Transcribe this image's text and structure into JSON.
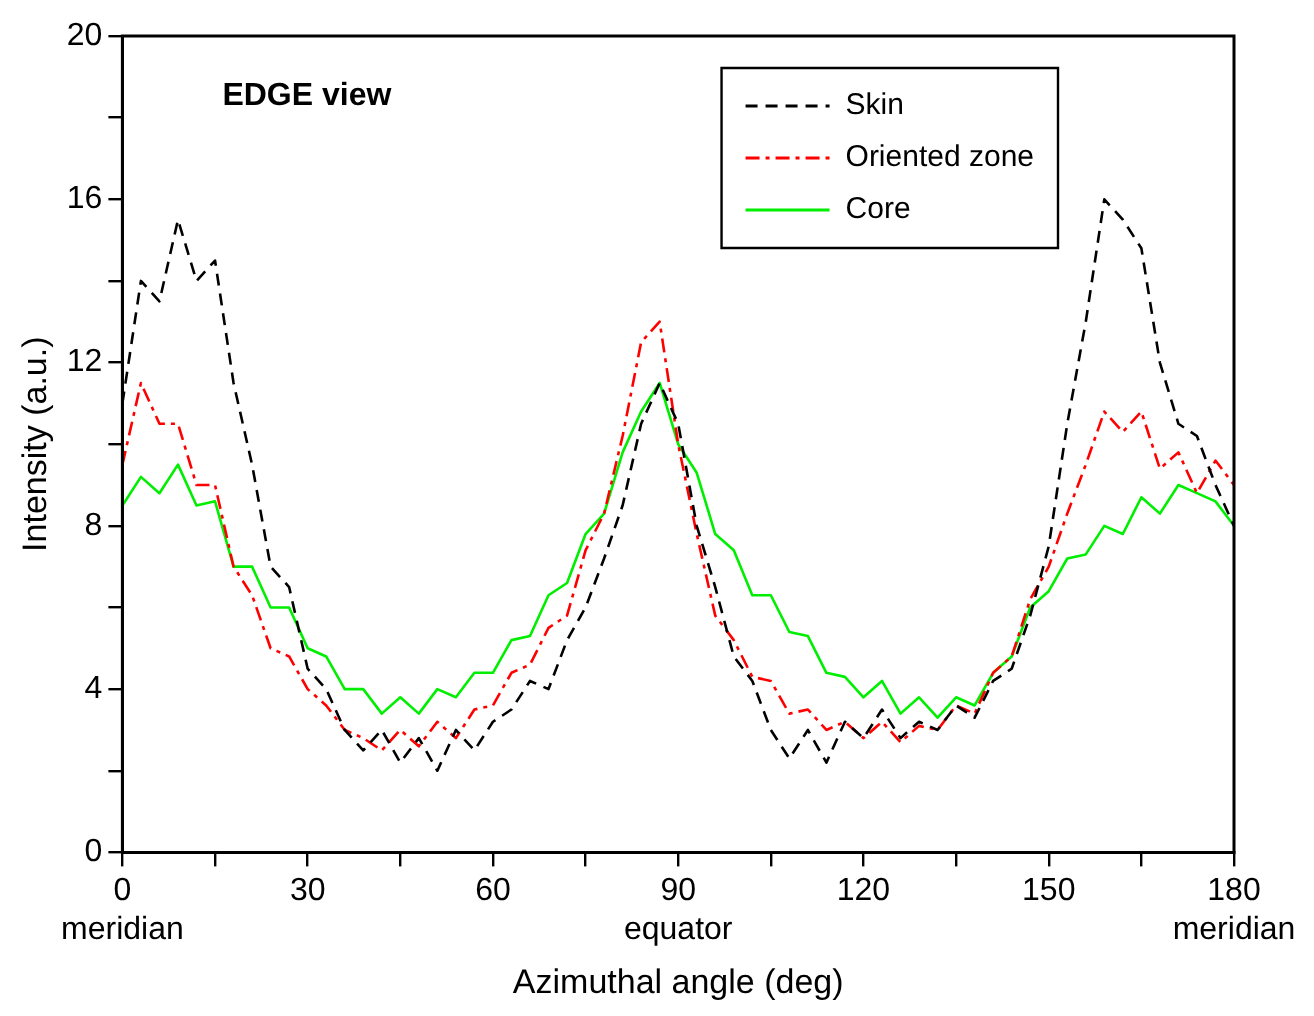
{
  "chart_data": {
    "type": "line",
    "xlabel": "Azimuthal angle (deg)",
    "ylabel": "Intensity (a.u.)",
    "annotations": [
      "EDGE view"
    ],
    "x": [
      0,
      3,
      6,
      9,
      12,
      15,
      18,
      21,
      24,
      27,
      30,
      33,
      36,
      39,
      42,
      45,
      48,
      51,
      54,
      57,
      60,
      63,
      66,
      69,
      72,
      75,
      78,
      81,
      84,
      87,
      90,
      93,
      96,
      99,
      102,
      105,
      108,
      111,
      114,
      117,
      120,
      123,
      126,
      129,
      132,
      135,
      138,
      141,
      144,
      147,
      150,
      153,
      156,
      159,
      162,
      165,
      168,
      171,
      174,
      177,
      180
    ],
    "series": [
      {
        "name": "Skin",
        "color": "#000000",
        "line_style": "dashed",
        "values": [
          11,
          14,
          13.5,
          15.5,
          14,
          14.5,
          11.5,
          9.5,
          7,
          6.5,
          4.5,
          4,
          3,
          2.5,
          3,
          2.2,
          2.8,
          2,
          3,
          2.5,
          3.2,
          3.5,
          4.2,
          4,
          5.2,
          6,
          7.2,
          8.5,
          10.5,
          11.5,
          10.5,
          8,
          6.5,
          4.8,
          4.2,
          3,
          2.3,
          3,
          2.2,
          3.2,
          2.8,
          3.5,
          2.8,
          3.2,
          3,
          3.6,
          3.3,
          4.2,
          4.5,
          5.8,
          7.5,
          10.5,
          13,
          16,
          15.5,
          14.8,
          12,
          10.5,
          10.2,
          9,
          8
        ]
      },
      {
        "name": "Oriented zone",
        "color": "#ff0000",
        "line_style": "dashdot",
        "values": [
          9.5,
          11.5,
          10.5,
          10.5,
          9,
          9,
          7,
          6.3,
          5,
          4.8,
          4,
          3.6,
          3,
          2.8,
          2.5,
          3,
          2.6,
          3.2,
          2.8,
          3.5,
          3.6,
          4.4,
          4.6,
          5.5,
          5.8,
          7.4,
          8.3,
          10.2,
          12.5,
          13,
          10,
          7.8,
          5.8,
          5.2,
          4.3,
          4.2,
          3.4,
          3.5,
          3,
          3.2,
          2.8,
          3.2,
          2.7,
          3.1,
          3,
          3.6,
          3.4,
          4.4,
          4.8,
          6.2,
          7,
          8.3,
          9.5,
          10.8,
          10.3,
          10.8,
          9.4,
          9.8,
          8.8,
          9.6,
          9
        ]
      },
      {
        "name": "Core",
        "color": "#00ee00",
        "line_style": "solid",
        "values": [
          8.5,
          9.2,
          8.8,
          9.5,
          8.5,
          8.6,
          7,
          7,
          6,
          6,
          5,
          4.8,
          4,
          4,
          3.4,
          3.8,
          3.4,
          4,
          3.8,
          4.4,
          4.4,
          5.2,
          5.3,
          6.3,
          6.6,
          7.8,
          8.3,
          9.8,
          10.8,
          11.5,
          10,
          9.3,
          7.8,
          7.4,
          6.3,
          6.3,
          5.4,
          5.3,
          4.4,
          4.3,
          3.8,
          4.2,
          3.4,
          3.8,
          3.3,
          3.8,
          3.6,
          4.4,
          4.8,
          6,
          6.4,
          7.2,
          7.3,
          8,
          7.8,
          8.7,
          8.3,
          9,
          8.8,
          8.6,
          8
        ]
      }
    ],
    "xlim": [
      0,
      180
    ],
    "xticks": [
      {
        "value": 0,
        "label": "0\nmeridian"
      },
      {
        "value": 15,
        "label": null
      },
      30,
      {
        "value": 45,
        "label": null
      },
      60,
      {
        "value": 75,
        "label": null
      },
      {
        "value": 90,
        "label": "90\nequator"
      },
      {
        "value": 105,
        "label": null
      },
      120,
      {
        "value": 135,
        "label": null
      },
      150,
      {
        "value": 165,
        "label": null
      },
      {
        "value": 180,
        "label": "180\nmeridian"
      }
    ],
    "ylim": [
      0,
      20
    ],
    "yticks": [
      0,
      {
        "value": 2,
        "label": null
      },
      4,
      {
        "value": 6,
        "label": null
      },
      8,
      {
        "value": 10,
        "label": null
      },
      12,
      {
        "value": 14,
        "label": null
      },
      16,
      {
        "value": 18,
        "label": null
      },
      20
    ],
    "grid": false,
    "legend": "top right",
    "marker": "none"
  }
}
